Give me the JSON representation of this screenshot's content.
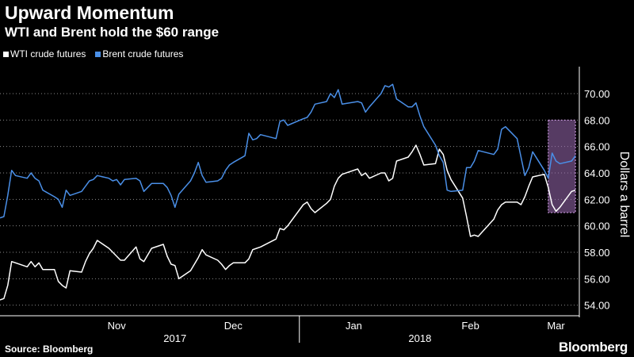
{
  "chart_data": {
    "type": "line",
    "title": "Upward Momentum",
    "subtitle": "WTI and Brent hold the $60 range",
    "ylabel": "Dollars a barrel",
    "ylim": [
      53.2,
      71.8
    ],
    "yticks": [
      "54.00",
      "56.00",
      "58.00",
      "60.00",
      "62.00",
      "64.00",
      "66.00",
      "68.00",
      "70.00"
    ],
    "xlim": [
      "2017-10-16",
      "2018-03-14"
    ],
    "month_labels": [
      {
        "label": "Nov",
        "date": "2017-11-15"
      },
      {
        "label": "Dec",
        "date": "2017-12-15"
      },
      {
        "label": "Jan",
        "date": "2018-01-15"
      },
      {
        "label": "Feb",
        "date": "2018-02-14"
      },
      {
        "label": "Mar",
        "date": "2018-03-08"
      }
    ],
    "year_labels": [
      {
        "label": "2017",
        "date": "2017-11-30"
      },
      {
        "label": "2018",
        "date": "2018-02-01"
      }
    ],
    "year_boundary": "2018-01-01",
    "grid": "horizontal dotted",
    "legend_position": "top-left",
    "highlight_box": {
      "x_start": "2018-03-06",
      "x_end": "2018-03-13",
      "y_start": 61.0,
      "y_end": 68.0,
      "color": "#9c6bb5"
    },
    "series": [
      {
        "name": "WTI crude futures",
        "color": "#ffffff",
        "x": [
          "2017-10-16",
          "2017-10-17",
          "2017-10-18",
          "2017-10-19",
          "2017-10-20",
          "2017-10-23",
          "2017-10-24",
          "2017-10-25",
          "2017-10-26",
          "2017-10-27",
          "2017-10-30",
          "2017-10-31",
          "2017-11-01",
          "2017-11-02",
          "2017-11-03",
          "2017-11-06",
          "2017-11-07",
          "2017-11-08",
          "2017-11-09",
          "2017-11-10",
          "2017-11-13",
          "2017-11-14",
          "2017-11-15",
          "2017-11-16",
          "2017-11-17",
          "2017-11-20",
          "2017-11-21",
          "2017-11-22",
          "2017-11-24",
          "2017-11-27",
          "2017-11-28",
          "2017-11-29",
          "2017-11-30",
          "2017-12-01",
          "2017-12-04",
          "2017-12-05",
          "2017-12-06",
          "2017-12-07",
          "2017-12-08",
          "2017-12-11",
          "2017-12-12",
          "2017-12-13",
          "2017-12-14",
          "2017-12-15",
          "2017-12-18",
          "2017-12-19",
          "2017-12-20",
          "2017-12-21",
          "2017-12-22",
          "2017-12-26",
          "2017-12-27",
          "2017-12-28",
          "2017-12-29",
          "2018-01-02",
          "2018-01-03",
          "2018-01-04",
          "2018-01-05",
          "2018-01-08",
          "2018-01-09",
          "2018-01-10",
          "2018-01-11",
          "2018-01-12",
          "2018-01-16",
          "2018-01-17",
          "2018-01-18",
          "2018-01-19",
          "2018-01-22",
          "2018-01-23",
          "2018-01-24",
          "2018-01-25",
          "2018-01-26",
          "2018-01-29",
          "2018-01-30",
          "2018-01-31",
          "2018-02-01",
          "2018-02-02",
          "2018-02-05",
          "2018-02-06",
          "2018-02-07",
          "2018-02-08",
          "2018-02-09",
          "2018-02-12",
          "2018-02-13",
          "2018-02-14",
          "2018-02-15",
          "2018-02-16",
          "2018-02-20",
          "2018-02-21",
          "2018-02-22",
          "2018-02-23",
          "2018-02-26",
          "2018-02-27",
          "2018-02-28",
          "2018-03-01",
          "2018-03-02",
          "2018-03-05",
          "2018-03-06",
          "2018-03-07",
          "2018-03-08",
          "2018-03-09",
          "2018-03-12",
          "2018-03-13"
        ],
        "values": [
          54.4,
          54.5,
          55.5,
          57.3,
          57.2,
          56.9,
          57.3,
          56.9,
          57.2,
          56.7,
          56.7,
          55.8,
          55.5,
          55.3,
          56.6,
          56.5,
          57.3,
          57.9,
          58.3,
          58.9,
          58.3,
          58.0,
          57.7,
          57.4,
          57.4,
          58.4,
          57.5,
          57.3,
          58.3,
          58.6,
          57.7,
          57.1,
          57.0,
          56.0,
          56.6,
          57.1,
          57.6,
          58.2,
          57.8,
          57.4,
          57.1,
          56.7,
          57.0,
          57.2,
          57.2,
          57.5,
          58.2,
          58.3,
          58.4,
          59.0,
          59.8,
          59.7,
          60.0,
          61.6,
          61.8,
          61.3,
          61.0,
          61.7,
          62.0,
          63.0,
          63.6,
          63.9,
          64.3,
          63.8,
          64.0,
          63.6,
          64.0,
          64.0,
          63.4,
          63.6,
          64.9,
          65.2,
          65.6,
          66.1,
          65.4,
          64.6,
          64.7,
          65.8,
          65.4,
          64.2,
          63.5,
          62.1,
          60.7,
          59.2,
          59.3,
          59.2,
          60.5,
          61.2,
          61.6,
          61.8,
          61.8,
          61.6,
          62.2,
          63.0,
          63.7,
          63.9,
          62.9,
          61.6,
          61.1,
          61.4,
          62.6,
          62.7
        ]
      },
      {
        "name": "Brent crude futures",
        "color": "#4a8fe7",
        "x": [
          "2017-10-16",
          "2017-10-17",
          "2017-10-18",
          "2017-10-19",
          "2017-10-20",
          "2017-10-23",
          "2017-10-24",
          "2017-10-25",
          "2017-10-26",
          "2017-10-27",
          "2017-10-30",
          "2017-10-31",
          "2017-11-01",
          "2017-11-02",
          "2017-11-03",
          "2017-11-06",
          "2017-11-07",
          "2017-11-08",
          "2017-11-09",
          "2017-11-10",
          "2017-11-13",
          "2017-11-14",
          "2017-11-15",
          "2017-11-16",
          "2017-11-17",
          "2017-11-20",
          "2017-11-21",
          "2017-11-22",
          "2017-11-24",
          "2017-11-27",
          "2017-11-28",
          "2017-11-29",
          "2017-11-30",
          "2017-12-01",
          "2017-12-04",
          "2017-12-05",
          "2017-12-06",
          "2017-12-07",
          "2017-12-08",
          "2017-12-11",
          "2017-12-12",
          "2017-12-13",
          "2017-12-14",
          "2017-12-15",
          "2017-12-18",
          "2017-12-19",
          "2017-12-20",
          "2017-12-21",
          "2017-12-22",
          "2017-12-26",
          "2017-12-27",
          "2017-12-28",
          "2017-12-29",
          "2018-01-02",
          "2018-01-03",
          "2018-01-04",
          "2018-01-05",
          "2018-01-08",
          "2018-01-09",
          "2018-01-10",
          "2018-01-11",
          "2018-01-12",
          "2018-01-16",
          "2018-01-17",
          "2018-01-18",
          "2018-01-19",
          "2018-01-22",
          "2018-01-23",
          "2018-01-24",
          "2018-01-25",
          "2018-01-26",
          "2018-01-29",
          "2018-01-30",
          "2018-01-31",
          "2018-02-01",
          "2018-02-02",
          "2018-02-05",
          "2018-02-06",
          "2018-02-07",
          "2018-02-08",
          "2018-02-09",
          "2018-02-12",
          "2018-02-13",
          "2018-02-14",
          "2018-02-15",
          "2018-02-16",
          "2018-02-20",
          "2018-02-21",
          "2018-02-22",
          "2018-02-23",
          "2018-02-26",
          "2018-02-27",
          "2018-02-28",
          "2018-03-01",
          "2018-03-02",
          "2018-03-05",
          "2018-03-06",
          "2018-03-07",
          "2018-03-08",
          "2018-03-09",
          "2018-03-12",
          "2018-03-13"
        ],
        "values": [
          60.6,
          60.7,
          62.3,
          64.2,
          63.8,
          63.6,
          64.0,
          63.6,
          63.4,
          62.7,
          62.2,
          62.0,
          61.4,
          62.7,
          62.3,
          62.6,
          63.0,
          63.4,
          63.5,
          63.8,
          63.6,
          63.4,
          63.5,
          63.1,
          63.5,
          63.6,
          63.4,
          62.6,
          63.2,
          63.2,
          62.9,
          62.3,
          61.4,
          62.4,
          63.4,
          64.0,
          64.8,
          63.8,
          63.3,
          63.4,
          63.6,
          64.2,
          64.6,
          64.8,
          65.3,
          67.0,
          66.5,
          66.6,
          66.9,
          66.6,
          67.9,
          68.0,
          67.6,
          68.1,
          68.2,
          68.6,
          69.2,
          69.4,
          70.0,
          69.7,
          70.3,
          69.2,
          69.4,
          69.3,
          68.6,
          69.0,
          70.0,
          70.6,
          70.5,
          70.7,
          69.6,
          69.0,
          69.0,
          69.3,
          68.3,
          67.5,
          66.1,
          65.3,
          64.8,
          62.7,
          62.6,
          62.7,
          64.4,
          64.4,
          64.9,
          65.7,
          65.4,
          65.8,
          67.3,
          67.5,
          66.6,
          65.2,
          63.8,
          64.4,
          65.6,
          64.2,
          63.6,
          65.5,
          64.9,
          64.7,
          64.9,
          65.3
        ]
      }
    ]
  },
  "legend": {
    "wti_label": "WTI crude futures",
    "brent_label": "Brent crude futures"
  },
  "footer": {
    "source": "Source: Bloomberg",
    "brand": "Bloomberg"
  }
}
